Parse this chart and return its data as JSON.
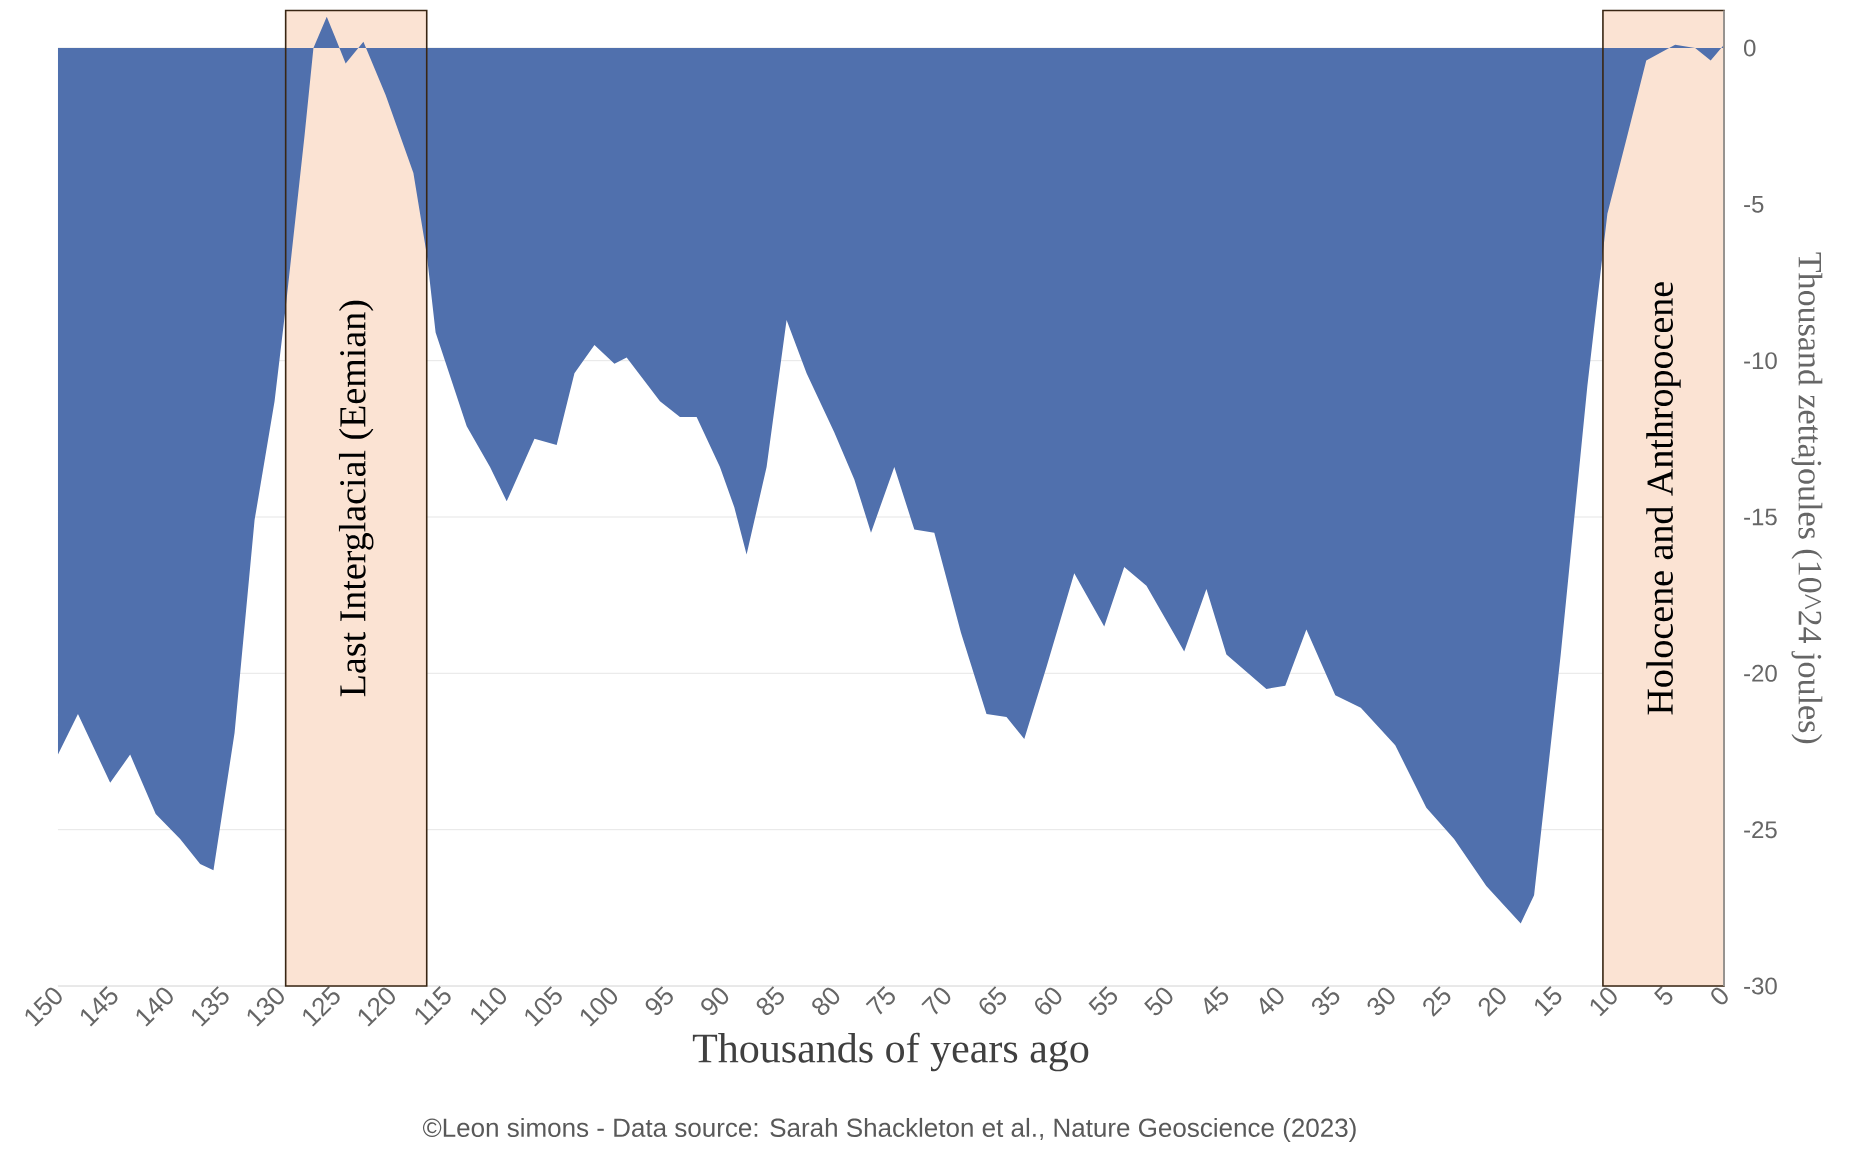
{
  "chart_data": {
    "type": "area",
    "xlabel": "Thousands of years ago",
    "ylabel": "Thousand zettajoules (10^24 joules)",
    "annotations": [
      "©Leon simons - Data source: Sarah Shackleton et al., Nature Geoscience (2023)"
    ],
    "xlim": [
      150,
      0
    ],
    "xticks": [
      150,
      145,
      140,
      135,
      130,
      125,
      120,
      115,
      110,
      105,
      100,
      95,
      90,
      85,
      80,
      75,
      70,
      65,
      60,
      55,
      50,
      45,
      40,
      35,
      30,
      25,
      20,
      15,
      10,
      5,
      0
    ],
    "ylim": [
      -30,
      1.2
    ],
    "yticks": [
      0,
      -5,
      -10,
      -15,
      -20,
      -25,
      -30
    ],
    "grid": "y",
    "series": [
      {
        "color": "#5070ad",
        "x": [
          150,
          148.2,
          145.3,
          143.5,
          141.2,
          139,
          137.2,
          136,
          134.1,
          132.3,
          130.5,
          129.5,
          127.8,
          127,
          125.8,
          125,
          124.1,
          122.5,
          120.5,
          118,
          116.8,
          116,
          113.2,
          111.1,
          109.6,
          107.1,
          105.1,
          103.5,
          101.7,
          99.9,
          98.8,
          95.8,
          94,
          92.5,
          90.4,
          89.1,
          88,
          86.2,
          84.4,
          82.6,
          80.1,
          78.3,
          76.8,
          74.7,
          72.9,
          71.1,
          68.7,
          66.4,
          64.6,
          63,
          61,
          58.5,
          55.8,
          54,
          52,
          48.6,
          46.6,
          44.8,
          41.2,
          39.5,
          37.6,
          35,
          32.7,
          29.6,
          26.8,
          24.3,
          21.4,
          18.3,
          17.1,
          14.7,
          12.3,
          10.5,
          8.7,
          7,
          4.4,
          2.6,
          1.2,
          0
        ],
        "values": [
          -22.6,
          -21.3,
          -23.5,
          -22.6,
          -24.5,
          -25.3,
          -26.1,
          -26.3,
          -21.9,
          -15.1,
          -11.3,
          -8.3,
          -2.8,
          0,
          1.0,
          0.3,
          -0.5,
          0.2,
          -1.5,
          -4,
          -6.6,
          -9.1,
          -12.1,
          -13.4,
          -14.5,
          -12.5,
          -12.7,
          -10.4,
          -9.5,
          -10.1,
          -9.9,
          -11.3,
          -11.8,
          -11.8,
          -13.4,
          -14.7,
          -16.2,
          -13.4,
          -8.7,
          -10.4,
          -12.3,
          -13.8,
          -15.5,
          -13.4,
          -15.4,
          -15.5,
          -18.7,
          -21.3,
          -21.4,
          -22.1,
          -19.8,
          -16.8,
          -18.5,
          -16.6,
          -17.2,
          -19.3,
          -17.3,
          -19.4,
          -20.5,
          -20.4,
          -18.6,
          -20.7,
          -21.1,
          -22.3,
          -24.3,
          -25.3,
          -26.8,
          -28.0,
          -27.1,
          -19.4,
          -10.8,
          -5.3,
          -2.8,
          -0.4,
          0.1,
          0,
          -0.4,
          0.1
        ]
      }
    ],
    "bands": [
      {
        "axis": "x",
        "from": 129.5,
        "to": 116.8,
        "label": "Last Interglacial (Eemian)",
        "color": "#fbe3d3"
      },
      {
        "axis": "x",
        "from": 10.9,
        "to": 0,
        "label": "Holocene and Anthropocene",
        "color": "#fbe3d3"
      }
    ]
  }
}
